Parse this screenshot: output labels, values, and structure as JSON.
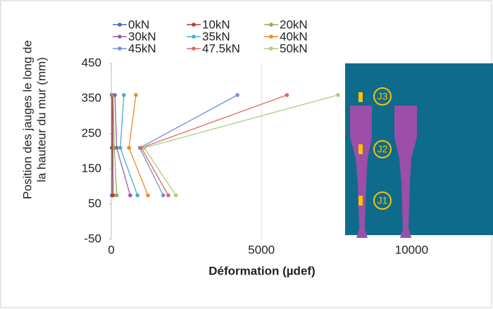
{
  "chart_data": {
    "type": "line",
    "xlabel": "Déformation (µdef)",
    "ylabel": [
      "Position des jauges le long de",
      "la hauteur du mur (mm)"
    ],
    "series": [
      {
        "name": "0kN",
        "color": "#3f6fc1",
        "x": [
          20,
          20,
          20
        ],
        "values": [
          75,
          210,
          360
        ]
      },
      {
        "name": "10kN",
        "color": "#c0392b",
        "x": [
          60,
          50,
          40
        ],
        "values": [
          75,
          210,
          360
        ]
      },
      {
        "name": "20kN",
        "color": "#8fb04a",
        "x": [
          180,
          100,
          60
        ],
        "values": [
          75,
          210,
          360
        ]
      },
      {
        "name": "30kN",
        "color": "#9b59b6",
        "x": [
          630,
          180,
          120
        ],
        "values": [
          75,
          210,
          360
        ]
      },
      {
        "name": "35kN",
        "color": "#4bacc6",
        "x": [
          870,
          300,
          420
        ],
        "values": [
          75,
          210,
          360
        ]
      },
      {
        "name": "40kN",
        "color": "#f08a24",
        "x": [
          1220,
          590,
          820
        ],
        "values": [
          75,
          210,
          360
        ]
      },
      {
        "name": "45kN",
        "color": "#7190d8",
        "x": [
          1730,
          950,
          4200
        ],
        "values": [
          75,
          210,
          360
        ]
      },
      {
        "name": "47.5kN",
        "color": "#e06666",
        "x": [
          1900,
          1000,
          5850
        ],
        "values": [
          75,
          210,
          360
        ]
      },
      {
        "name": "50kN",
        "color": "#a9cf7a",
        "x": [
          2150,
          1100,
          7550
        ],
        "values": [
          75,
          210,
          360
        ]
      }
    ],
    "xlim": [
      0,
      12500
    ],
    "xticks": [
      0,
      5000,
      10000
    ],
    "ylim": [
      -50,
      450
    ],
    "yticks": [
      -50,
      50,
      150,
      250,
      350,
      450
    ],
    "grid": "x",
    "legend": "top-left",
    "inset_labels": [
      "J3",
      "J2",
      "J1"
    ]
  }
}
